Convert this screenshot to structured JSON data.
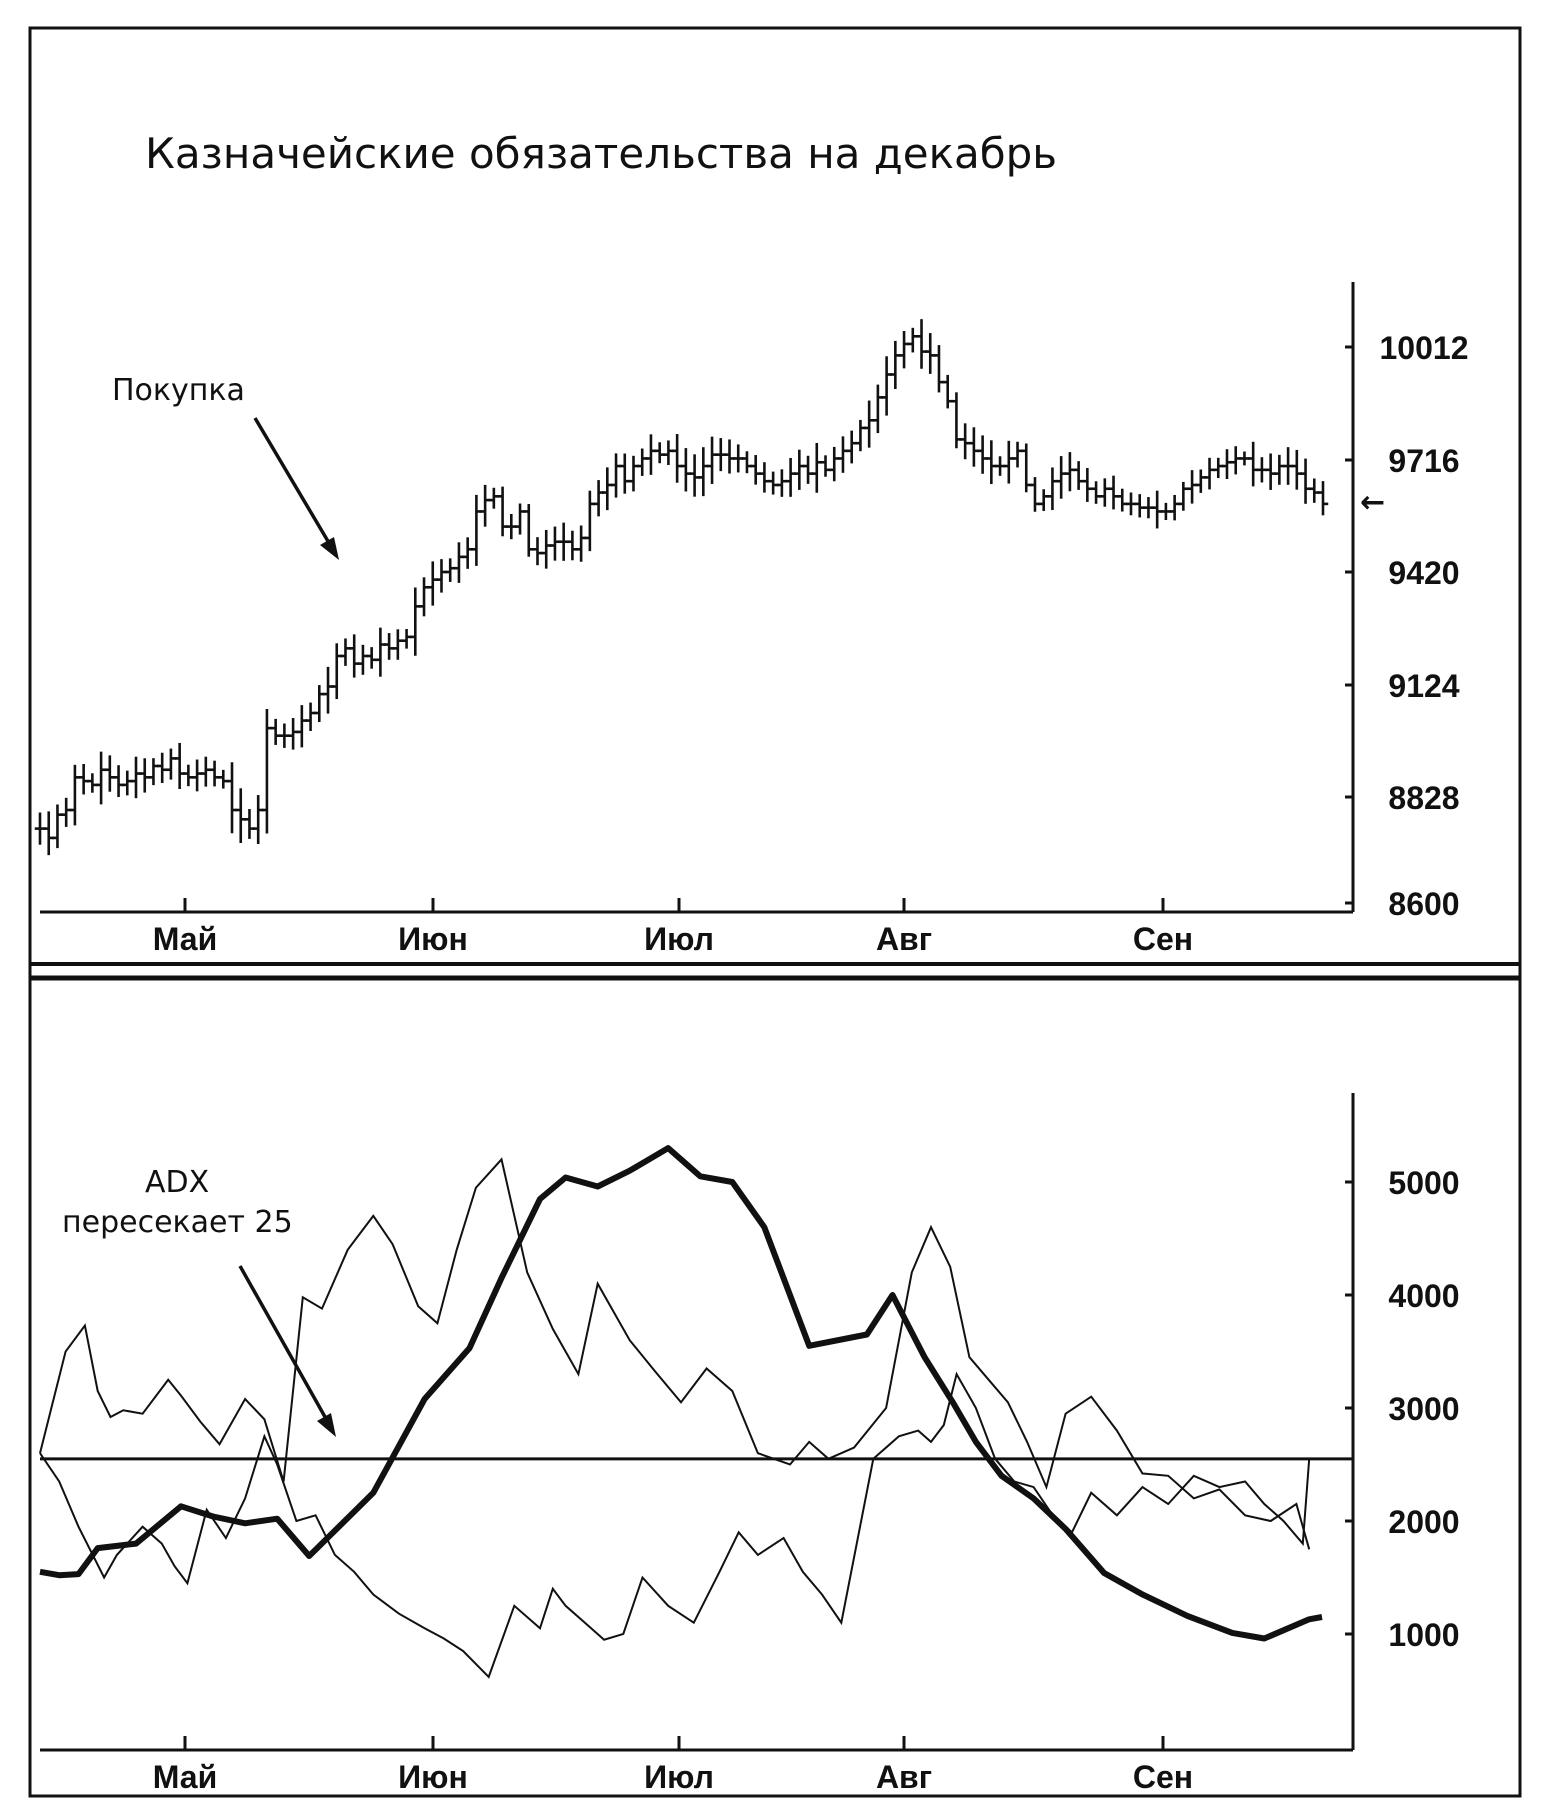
{
  "chart_data": [
    {
      "type": "ohlc",
      "title": "Казначейские обязательства на декабрь",
      "annotation": "Покупка",
      "current_price_marker": "←",
      "months": [
        "Май",
        "Июн",
        "Июл",
        "Авг",
        "Сен"
      ],
      "yticks": [
        "10012",
        "9716",
        "9420",
        "9124",
        "8828",
        "8600"
      ],
      "ylim": [
        8600,
        10100
      ],
      "close": [
        8760,
        8740,
        8790,
        8800,
        8880,
        8870,
        8860,
        8900,
        8880,
        8860,
        8870,
        8890,
        8880,
        8910,
        8900,
        8930,
        8890,
        8880,
        8890,
        8900,
        8880,
        8870,
        8800,
        8780,
        8760,
        8800,
        9010,
        8990,
        8990,
        9000,
        9030,
        9050,
        9100,
        9120,
        9200,
        9220,
        9180,
        9200,
        9190,
        9230,
        9220,
        9240,
        9250,
        9330,
        9380,
        9400,
        9420,
        9430,
        9460,
        9480,
        9580,
        9610,
        9620,
        9540,
        9540,
        9580,
        9480,
        9470,
        9490,
        9500,
        9500,
        9480,
        9510,
        9600,
        9630,
        9650,
        9700,
        9660,
        9700,
        9720,
        9740,
        9730,
        9740,
        9700,
        9680,
        9670,
        9700,
        9730,
        9730,
        9720,
        9720,
        9700,
        9680,
        9660,
        9650,
        9660,
        9680,
        9700,
        9680,
        9710,
        9690,
        9720,
        9740,
        9760,
        9800,
        9820,
        9880,
        9940,
        9990,
        10020,
        10040,
        10000,
        9990,
        9920,
        9870,
        9770,
        9760,
        9740,
        9720,
        9700,
        9700,
        9720,
        9740,
        9650,
        9600,
        9620,
        9660,
        9680,
        9690,
        9660,
        9640,
        9620,
        9640,
        9620,
        9600,
        9600,
        9590,
        9590,
        9580,
        9580,
        9600,
        9640,
        9650,
        9670,
        9690,
        9700,
        9710,
        9720,
        9720,
        9690,
        9690,
        9680,
        9700,
        9700,
        9680,
        9640,
        9630,
        9600
      ]
    },
    {
      "type": "line",
      "annotation": [
        "ADX",
        "пересекает 25"
      ],
      "months": [
        "Май",
        "Июн",
        "Июл",
        "Авг",
        "Сен"
      ],
      "yticks": [
        "5000",
        "4000",
        "3000",
        "2000",
        "1000"
      ],
      "ylim": [
        0,
        5800
      ],
      "reference_line": 2550,
      "series": [
        {
          "style": "thick",
          "x": [
            0,
            0.015,
            0.03,
            0.045,
            0.075,
            0.11,
            0.135,
            0.16,
            0.185,
            0.21,
            0.26,
            0.3,
            0.335,
            0.36,
            0.39,
            0.41,
            0.435,
            0.46,
            0.49,
            0.515,
            0.54,
            0.565,
            0.6,
            0.645,
            0.665,
            0.69,
            0.712,
            0.73,
            0.75,
            0.775,
            0.8,
            0.83,
            0.86,
            0.895,
            0.93,
            0.955,
            0.99,
            1.0
          ],
          "y": [
            1550,
            1520,
            1530,
            1760,
            1800,
            2130,
            2040,
            1980,
            2020,
            1690,
            2250,
            3080,
            3530,
            4150,
            4850,
            5040,
            4960,
            5100,
            5300,
            5050,
            5000,
            4600,
            3550,
            3650,
            4000,
            3450,
            3050,
            2700,
            2400,
            2200,
            1930,
            1540,
            1350,
            1160,
            1010,
            960,
            1130,
            1150
          ]
        },
        {
          "style": "thin",
          "x": [
            0,
            0.01,
            0.02,
            0.035,
            0.045,
            0.055,
            0.065,
            0.08,
            0.1,
            0.11,
            0.125,
            0.14,
            0.16,
            0.175,
            0.19,
            0.205,
            0.22,
            0.24,
            0.26,
            0.275,
            0.295,
            0.31,
            0.325,
            0.34,
            0.36,
            0.38,
            0.4,
            0.42,
            0.435,
            0.46,
            0.48,
            0.5,
            0.52,
            0.54,
            0.56,
            0.585,
            0.6,
            0.615,
            0.635,
            0.66,
            0.68,
            0.695,
            0.71,
            0.725,
            0.74,
            0.755,
            0.77,
            0.785,
            0.8,
            0.82,
            0.84,
            0.86,
            0.88,
            0.9,
            0.92,
            0.94,
            0.96,
            0.98,
            0.99
          ],
          "y": [
            2600,
            3050,
            3500,
            3730,
            3150,
            2920,
            2980,
            2950,
            3250,
            3110,
            2880,
            2680,
            3080,
            2900,
            2350,
            3980,
            3880,
            4400,
            4700,
            4450,
            3900,
            3750,
            4400,
            4950,
            5200,
            4200,
            3700,
            3300,
            4100,
            3600,
            3320,
            3050,
            3350,
            3150,
            2600,
            2500,
            2700,
            2550,
            2650,
            3000,
            4200,
            4600,
            4250,
            3450,
            3250,
            3050,
            2700,
            2300,
            2950,
            3100,
            2800,
            2420,
            2400,
            2200,
            2280,
            2050,
            2000,
            2150,
            1750
          ]
        },
        {
          "style": "thin",
          "x": [
            0,
            0.015,
            0.03,
            0.05,
            0.06,
            0.08,
            0.095,
            0.105,
            0.115,
            0.13,
            0.145,
            0.16,
            0.175,
            0.185,
            0.2,
            0.215,
            0.23,
            0.245,
            0.26,
            0.28,
            0.3,
            0.315,
            0.33,
            0.35,
            0.37,
            0.39,
            0.4,
            0.41,
            0.425,
            0.44,
            0.455,
            0.47,
            0.49,
            0.51,
            0.53,
            0.545,
            0.56,
            0.58,
            0.595,
            0.61,
            0.625,
            0.65,
            0.67,
            0.685,
            0.695,
            0.705,
            0.715,
            0.73,
            0.745,
            0.76,
            0.775,
            0.79,
            0.805,
            0.82,
            0.84,
            0.86,
            0.88,
            0.9,
            0.92,
            0.94,
            0.955,
            0.97,
            0.985,
            0.99
          ],
          "y": [
            2600,
            2350,
            1950,
            1500,
            1700,
            1950,
            1800,
            1600,
            1450,
            2100,
            1850,
            2200,
            2750,
            2500,
            2000,
            2050,
            1700,
            1550,
            1350,
            1180,
            1050,
            960,
            850,
            620,
            1250,
            1050,
            1400,
            1250,
            1100,
            950,
            1000,
            1500,
            1250,
            1100,
            1550,
            1900,
            1700,
            1850,
            1550,
            1350,
            1100,
            2550,
            2750,
            2800,
            2700,
            2850,
            3300,
            3000,
            2550,
            2350,
            2300,
            2050,
            1900,
            2250,
            2050,
            2300,
            2150,
            2400,
            2300,
            2350,
            2150,
            2000,
            1800,
            2550
          ]
        }
      ]
    }
  ]
}
